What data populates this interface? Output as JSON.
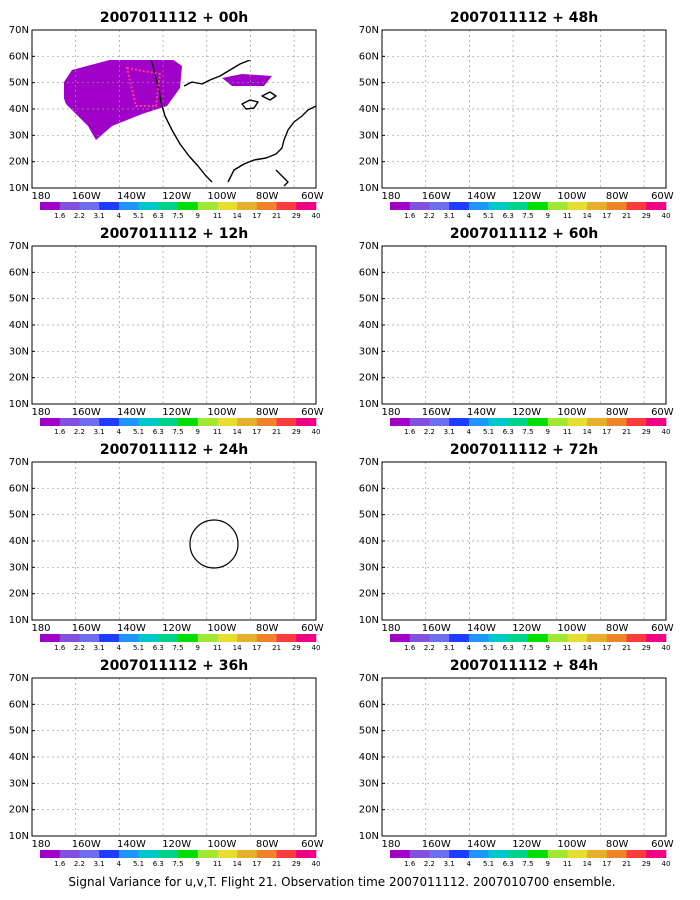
{
  "caption": "Signal Variance for u,v,T. Flight 21. Observation time 2007011112. 2007010700 ensemble.",
  "color_scale": {
    "labels": [
      "1.6",
      "2.2",
      "3.1",
      "4",
      "5.1",
      "6.3",
      "7.5",
      "9",
      "11",
      "14",
      "17",
      "21",
      "29",
      "40"
    ],
    "colors": [
      "#a000c8",
      "#8250dc",
      "#6e6ef0",
      "#1e3cff",
      "#1e96ff",
      "#00c8c8",
      "#00d28c",
      "#00dc00",
      "#a0e632",
      "#e6dc32",
      "#e6af2d",
      "#f08228",
      "#fa3c3c",
      "#f00082"
    ]
  },
  "axes": {
    "lon_labels": [
      "180",
      "160W",
      "140W",
      "120W",
      "100W",
      "80W",
      "60W"
    ],
    "lat_labels": [
      "70N",
      "60N",
      "50N",
      "40N",
      "30N",
      "20N",
      "10N"
    ]
  },
  "panels": [
    {
      "title": "2007011112 + 00h",
      "level": 0
    },
    {
      "title": "2007011112 + 48h",
      "level": 4
    },
    {
      "title": "2007011112 + 12h",
      "level": 1
    },
    {
      "title": "2007011112 + 60h",
      "level": 5
    },
    {
      "title": "2007011112 + 24h",
      "level": 2
    },
    {
      "title": "2007011112 + 72h",
      "level": 6
    },
    {
      "title": "2007011112 + 36h",
      "level": 3
    },
    {
      "title": "2007011112 + 84h",
      "level": 7
    }
  ]
}
